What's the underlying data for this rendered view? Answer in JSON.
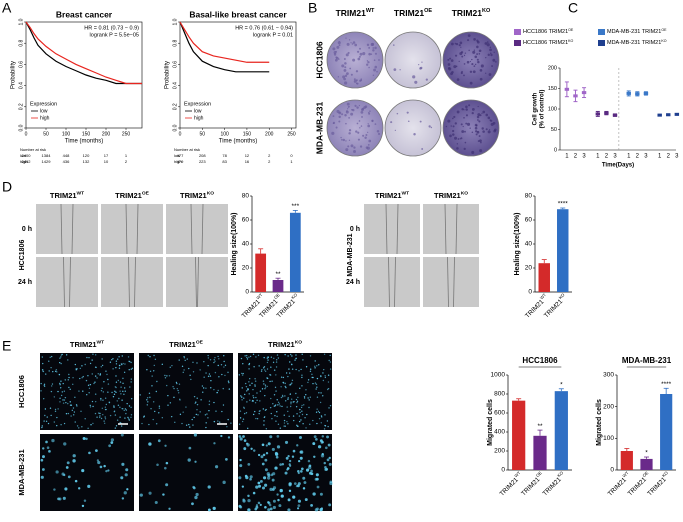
{
  "panels": {
    "A": {
      "letter": "A",
      "plots": [
        {
          "title": "Breast cancer",
          "hr": "HR = 0.81 (0.73 − 0.9)",
          "p": "logrank P = 5.5e−05",
          "ylabel": "Probability",
          "xlabel": "Time (months)",
          "xlim": [
            0,
            290
          ],
          "ylim": [
            0,
            1
          ],
          "xticks": [
            0,
            50,
            100,
            150,
            200,
            250
          ],
          "yticks": [
            {
              "value": 0,
              "label": "0.0"
            },
            {
              "value": 0.2,
              "label": "0.2"
            },
            {
              "value": 0.4,
              "label": "0.4"
            },
            {
              "value": 0.6,
              "label": "0.6"
            },
            {
              "value": 0.8,
              "label": "0.8"
            },
            {
              "value": 1,
              "label": "1.0"
            }
          ],
          "legend_title": "Expression",
          "series": [
            {
              "name": "low",
              "color": "#000000",
              "x": [
                0,
                10,
                20,
                30,
                50,
                75,
                100,
                125,
                150,
                175,
                200,
                225,
                250,
                290
              ],
              "values": [
                1,
                0.93,
                0.85,
                0.78,
                0.7,
                0.63,
                0.58,
                0.54,
                0.5,
                0.47,
                0.45,
                0.42,
                0.42,
                0.42
              ]
            },
            {
              "name": "high",
              "color": "#e8251f",
              "x": [
                0,
                10,
                20,
                30,
                50,
                75,
                100,
                125,
                150,
                175,
                200,
                225,
                250,
                290
              ],
              "values": [
                1,
                0.95,
                0.89,
                0.84,
                0.77,
                0.7,
                0.65,
                0.6,
                0.56,
                0.52,
                0.48,
                0.45,
                0.42,
                0.42
              ]
            }
          ],
          "risk": {
            "title": "Number at risk",
            "rows": [
              {
                "name": "low",
                "counts": [
                  2400,
                  1384,
                  448,
                  120,
                  17,
                  1
                ]
              },
              {
                "name": "high",
                "counts": [
                  2402,
                  1429,
                  436,
                  132,
                  10,
                  2
                ]
              }
            ]
          }
        },
        {
          "title": "Basal-like breast cancer",
          "hr": "HR = 0.76 (0.61 − 0.94)",
          "p": "logrank P = 0.01",
          "ylabel": "Probability",
          "xlabel": "Time (months)",
          "xlim": [
            0,
            260
          ],
          "ylim": [
            0,
            1
          ],
          "xticks": [
            0,
            50,
            100,
            150,
            200,
            250
          ],
          "yticks": [
            {
              "value": 0,
              "label": "0.0"
            },
            {
              "value": 0.2,
              "label": "0.2"
            },
            {
              "value": 0.4,
              "label": "0.4"
            },
            {
              "value": 0.6,
              "label": "0.6"
            },
            {
              "value": 0.8,
              "label": "0.8"
            },
            {
              "value": 1,
              "label": "1.0"
            }
          ],
          "legend_title": "Expression",
          "series": [
            {
              "name": "low",
              "color": "#000000",
              "x": [
                0,
                10,
                20,
                30,
                50,
                75,
                100,
                125,
                150,
                175,
                200
              ],
              "values": [
                1,
                0.9,
                0.8,
                0.72,
                0.63,
                0.58,
                0.55,
                0.53,
                0.53,
                0.53,
                0.53
              ]
            },
            {
              "name": "high",
              "color": "#e8251f",
              "x": [
                0,
                10,
                20,
                30,
                50,
                75,
                100,
                125,
                150,
                175,
                200
              ],
              "values": [
                1,
                0.93,
                0.86,
                0.8,
                0.72,
                0.68,
                0.66,
                0.64,
                0.62,
                0.62,
                0.62
              ]
            }
          ],
          "risk": {
            "title": "Number at risk",
            "rows": [
              {
                "name": "low",
                "counts": [
                  477,
                  208,
                  78,
                  12,
                  2,
                  0
                ]
              },
              {
                "name": "high",
                "counts": [
                  479,
                  223,
                  83,
                  16,
                  2,
                  1
                ]
              }
            ]
          }
        }
      ]
    },
    "B": {
      "letter": "B",
      "columns": [
        {
          "base": "TRIM21",
          "sup": "WT"
        },
        {
          "base": "TRIM21",
          "sup": "OE"
        },
        {
          "base": "TRIM21",
          "sup": "KO"
        }
      ],
      "rows": [
        "HCC1806",
        "MDA-MB-231"
      ]
    },
    "C": {
      "letter": "C",
      "ylabel": "Cell growth",
      "ylabel2": "(% of control)",
      "xlabel": "Time(Days)",
      "ylim": [
        0,
        200
      ],
      "yticks": [
        0,
        50,
        100,
        150,
        200
      ],
      "groups": [
        {
          "name": {
            "base": "HCC1806 TRIM21",
            "sup": "OE"
          },
          "color": "#a066c8",
          "days": [
            1,
            2,
            3
          ],
          "values": [
            148,
            132,
            140
          ],
          "errors": [
            18,
            14,
            12
          ]
        },
        {
          "name": {
            "base": "HCC1806 TRIM21",
            "sup": "KO"
          },
          "color": "#5a2a82",
          "days": [
            1,
            2,
            3
          ],
          "values": [
            88,
            90,
            85
          ],
          "errors": [
            6,
            4,
            3
          ]
        },
        {
          "name": {
            "base": "MDA-MB-231 TRIM21",
            "sup": "OE"
          },
          "color": "#3a78c8",
          "days": [
            1,
            2,
            3
          ],
          "values": [
            138,
            137,
            138
          ],
          "errors": [
            6,
            5,
            4
          ]
        },
        {
          "name": {
            "base": "MDA-MB-231 TRIM21",
            "sup": "KO"
          },
          "color": "#1f3f8f",
          "days": [
            1,
            2,
            3
          ],
          "values": [
            85,
            86,
            87
          ],
          "errors": [
            2,
            2,
            2
          ]
        }
      ]
    },
    "D": {
      "letter": "D",
      "left": {
        "columns": [
          {
            "base": "TRIM21",
            "sup": "WT"
          },
          {
            "base": "TRIM21",
            "sup": "OE"
          },
          {
            "base": "TRIM21",
            "sup": "KO"
          }
        ],
        "rows": [
          "0 h",
          "24 h"
        ],
        "cell": "HCC1806",
        "chart": {
          "ylabel": "Healing size(100%)",
          "ylim": [
            0,
            80
          ],
          "yticks": [
            0,
            20,
            40,
            60,
            80
          ],
          "categories": [
            {
              "base": "TRIM21",
              "sup": "WT"
            },
            {
              "base": "TRIM21",
              "sup": "OE"
            },
            {
              "base": "TRIM21",
              "sup": "KO"
            }
          ],
          "colors": [
            "#d42a2a",
            "#6a2a8a",
            "#2f6fc4"
          ],
          "values": [
            32,
            10,
            66
          ],
          "errors": [
            4,
            1.5,
            2
          ],
          "sig": [
            null,
            "**",
            "***"
          ]
        }
      },
      "right": {
        "columns": [
          {
            "base": "TRIM21",
            "sup": "WT"
          },
          {
            "base": "TRIM21",
            "sup": "KO"
          }
        ],
        "rows": [
          "0 h",
          "24 h"
        ],
        "cell": "MDA-MB-231",
        "chart": {
          "ylabel": "Healing size(100%)",
          "ylim": [
            0,
            80
          ],
          "yticks": [
            0,
            20,
            40,
            60,
            80
          ],
          "categories": [
            {
              "base": "TRIM21",
              "sup": "WT"
            },
            {
              "base": "TRIM21",
              "sup": "KO"
            }
          ],
          "colors": [
            "#d42a2a",
            "#2f6fc4"
          ],
          "values": [
            24,
            69
          ],
          "errors": [
            3,
            1
          ],
          "sig": [
            null,
            "****"
          ]
        }
      }
    },
    "E": {
      "letter": "E",
      "columns": [
        {
          "base": "TRIM21",
          "sup": "WT"
        },
        {
          "base": "TRIM21",
          "sup": "OE"
        },
        {
          "base": "TRIM21",
          "sup": "KO"
        }
      ],
      "rows": [
        "HCC1806",
        "MDA-MB-231"
      ],
      "charts": [
        {
          "title": "HCC1806",
          "ylabel": "Migrated cells",
          "ylim": [
            0,
            1000
          ],
          "yticks": [
            0,
            200,
            400,
            600,
            800,
            1000
          ],
          "categories": [
            {
              "base": "TRIM21",
              "sup": "WT"
            },
            {
              "base": "TRIM21",
              "sup": "OE"
            },
            {
              "base": "TRIM21",
              "sup": "KO"
            }
          ],
          "colors": [
            "#d42a2a",
            "#6a2a8a",
            "#2f6fc4"
          ],
          "values": [
            730,
            360,
            830
          ],
          "errors": [
            20,
            60,
            25
          ],
          "sig": [
            null,
            "**",
            "*"
          ]
        },
        {
          "title": "MDA-MB-231",
          "ylabel": "Migrated cells",
          "ylim": [
            0,
            300
          ],
          "yticks": [
            0,
            100,
            200,
            300
          ],
          "categories": [
            {
              "base": "TRIM21",
              "sup": "WT"
            },
            {
              "base": "TRIM21",
              "sup": "OE"
            },
            {
              "base": "TRIM21",
              "sup": "KO"
            }
          ],
          "colors": [
            "#d42a2a",
            "#6a2a8a",
            "#2f6fc4"
          ],
          "values": [
            60,
            35,
            240
          ],
          "errors": [
            8,
            6,
            18
          ],
          "sig": [
            null,
            "*",
            "****"
          ]
        }
      ]
    }
  }
}
